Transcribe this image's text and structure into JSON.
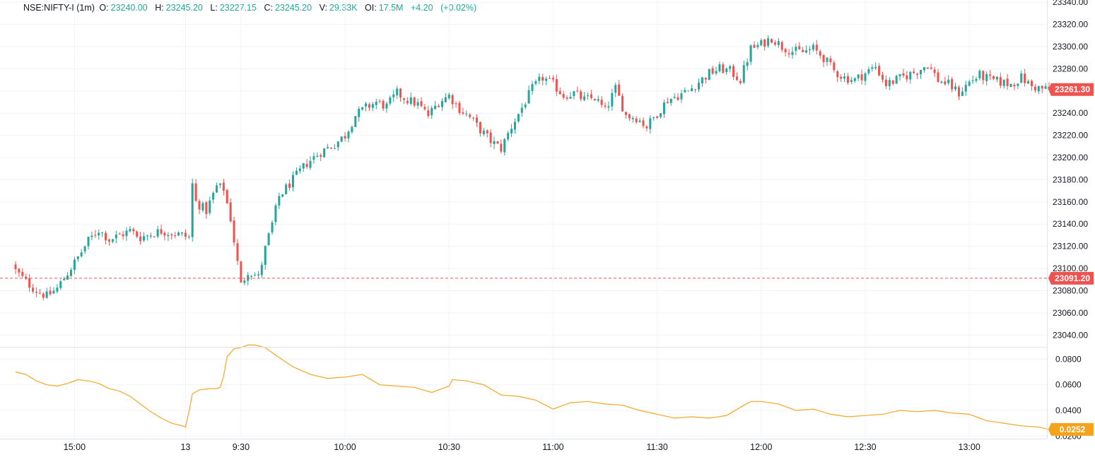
{
  "legend": {
    "symbol": "NSE:NIFTY-I (1m)",
    "o_label": "O:",
    "o_value": "23240.00",
    "h_label": "H:",
    "h_value": "23245.20",
    "l_label": "L:",
    "l_value": "23227.15",
    "c_label": "C:",
    "c_value": "23245.20",
    "v_label": "V:",
    "v_value": "29.33K",
    "oi_label": "OI:",
    "oi_value": "17.5M",
    "change": "+4.20",
    "change_pct": "(+0.02%)"
  },
  "colors": {
    "up": "#26a69a",
    "down": "#ef5350",
    "indicator": "#f5a623",
    "grid": "#f0f3fa",
    "axis_text": "#131722",
    "last_price_bg": "#ef5350",
    "indicator_label_bg": "#f7a21b"
  },
  "chart_data": [
    {
      "type": "candlestick",
      "title": "NSE:NIFTY-I (1m)",
      "x_tick_labels": [
        "15:00",
        "13",
        "9:30",
        "10:00",
        "10:30",
        "11:00",
        "11:30",
        "12:00",
        "12:30",
        "13:00"
      ],
      "y_tick_labels": [
        "23340.00",
        "23320.00",
        "23300.00",
        "23280.00",
        "23260.00",
        "23240.00",
        "23220.00",
        "23200.00",
        "23180.00",
        "23160.00",
        "23140.00",
        "23120.00",
        "23100.00",
        "23080.00",
        "23060.00",
        "23040.00"
      ],
      "ylim": [
        23030,
        23342
      ],
      "last_price_label": "23261.30",
      "last_price": 23261.3,
      "prev_close_label": "23091.20",
      "prev_close": 23091.2,
      "path_prices": [
        [
          0,
          23098
        ],
        [
          3,
          23088
        ],
        [
          6,
          23080
        ],
        [
          9,
          23075
        ],
        [
          12,
          23082
        ],
        [
          15,
          23096
        ],
        [
          18,
          23110
        ],
        [
          21,
          23125
        ],
        [
          24,
          23135
        ],
        [
          27,
          23126
        ],
        [
          30,
          23130
        ],
        [
          33,
          23134
        ],
        [
          36,
          23128
        ],
        [
          39,
          23131
        ],
        [
          42,
          23134
        ],
        [
          45,
          23132
        ],
        [
          48,
          23130
        ],
        [
          50,
          23128
        ],
        [
          51,
          23176
        ],
        [
          52,
          23160
        ],
        [
          55,
          23152
        ],
        [
          58,
          23174
        ],
        [
          60,
          23172
        ],
        [
          62,
          23145
        ],
        [
          64,
          23105
        ],
        [
          65,
          23085
        ],
        [
          67,
          23098
        ],
        [
          70,
          23092
        ],
        [
          72,
          23118
        ],
        [
          74,
          23140
        ],
        [
          76,
          23165
        ],
        [
          80,
          23180
        ],
        [
          84,
          23195
        ],
        [
          88,
          23205
        ],
        [
          92,
          23212
        ],
        [
          95,
          23220
        ],
        [
          98,
          23238
        ],
        [
          101,
          23245
        ],
        [
          104,
          23250
        ],
        [
          107,
          23246
        ],
        [
          110,
          23258
        ],
        [
          113,
          23252
        ],
        [
          116,
          23248
        ],
        [
          119,
          23238
        ],
        [
          122,
          23250
        ],
        [
          125,
          23256
        ],
        [
          128,
          23244
        ],
        [
          131,
          23236
        ],
        [
          134,
          23225
        ],
        [
          137,
          23215
        ],
        [
          140,
          23208
        ],
        [
          143,
          23228
        ],
        [
          146,
          23245
        ],
        [
          149,
          23262
        ],
        [
          152,
          23272
        ],
        [
          155,
          23266
        ],
        [
          158,
          23256
        ],
        [
          161,
          23258
        ],
        [
          164,
          23252
        ],
        [
          167,
          23254
        ],
        [
          170,
          23242
        ],
        [
          173,
          23262
        ],
        [
          176,
          23238
        ],
        [
          179,
          23236
        ],
        [
          182,
          23228
        ],
        [
          185,
          23240
        ],
        [
          188,
          23252
        ],
        [
          191,
          23256
        ],
        [
          194,
          23260
        ],
        [
          197,
          23268
        ],
        [
          200,
          23276
        ],
        [
          203,
          23280
        ],
        [
          206,
          23278
        ],
        [
          209,
          23270
        ],
        [
          212,
          23298
        ],
        [
          215,
          23302
        ],
        [
          218,
          23308
        ],
        [
          221,
          23300
        ],
        [
          224,
          23296
        ],
        [
          227,
          23295
        ],
        [
          230,
          23298
        ],
        [
          233,
          23290
        ],
        [
          236,
          23278
        ],
        [
          239,
          23272
        ],
        [
          242,
          23270
        ],
        [
          245,
          23276
        ],
        [
          248,
          23282
        ],
        [
          251,
          23266
        ],
        [
          254,
          23270
        ],
        [
          257,
          23274
        ],
        [
          260,
          23278
        ],
        [
          263,
          23284
        ],
        [
          266,
          23270
        ],
        [
          269,
          23266
        ],
        [
          272,
          23258
        ],
        [
          275,
          23268
        ],
        [
          278,
          23274
        ],
        [
          281,
          23270
        ],
        [
          284,
          23268
        ],
        [
          287,
          23266
        ],
        [
          290,
          23272
        ],
        [
          293,
          23264
        ],
        [
          296,
          23262
        ],
        [
          298,
          23261.3
        ]
      ],
      "n_candles": 299,
      "x_ticks_at_candle": {
        "15:00": 17,
        "13": 49,
        "9:30": 65,
        "10:00": 95,
        "10:30": 125,
        "11:00": 155,
        "11:30": 185,
        "12:00": 215,
        "12:30": 245,
        "13:00": 275
      }
    },
    {
      "type": "line",
      "title": "indicator",
      "y_tick_labels": [
        "0.0800",
        "0.0600",
        "0.0400",
        "0.0200"
      ],
      "ylim": [
        0.0185,
        0.089
      ],
      "last_value_label": "0.0252",
      "last_value": 0.0252,
      "x": [
        0,
        3,
        6,
        9,
        12,
        15,
        18,
        21,
        24,
        27,
        30,
        33,
        36,
        39,
        42,
        45,
        48,
        49,
        50,
        51,
        53,
        56,
        58,
        59,
        60,
        61,
        63,
        65,
        67,
        69,
        72,
        75,
        80,
        85,
        90,
        95,
        100,
        105,
        110,
        115,
        120,
        125,
        126,
        130,
        135,
        140,
        145,
        150,
        155,
        160,
        165,
        170,
        175,
        180,
        185,
        190,
        195,
        200,
        205,
        210,
        212,
        215,
        220,
        225,
        230,
        235,
        240,
        245,
        250,
        255,
        260,
        265,
        270,
        275,
        280,
        285,
        290,
        295,
        298
      ],
      "values": [
        0.07,
        0.068,
        0.063,
        0.06,
        0.059,
        0.061,
        0.064,
        0.063,
        0.061,
        0.057,
        0.055,
        0.051,
        0.045,
        0.039,
        0.034,
        0.03,
        0.028,
        0.027,
        0.039,
        0.053,
        0.056,
        0.057,
        0.057,
        0.058,
        0.067,
        0.082,
        0.088,
        0.089,
        0.091,
        0.091,
        0.089,
        0.083,
        0.074,
        0.068,
        0.065,
        0.066,
        0.068,
        0.06,
        0.059,
        0.058,
        0.054,
        0.059,
        0.064,
        0.063,
        0.06,
        0.052,
        0.051,
        0.048,
        0.041,
        0.046,
        0.047,
        0.045,
        0.044,
        0.04,
        0.037,
        0.034,
        0.035,
        0.034,
        0.036,
        0.044,
        0.047,
        0.047,
        0.045,
        0.04,
        0.041,
        0.037,
        0.035,
        0.036,
        0.037,
        0.04,
        0.039,
        0.04,
        0.038,
        0.037,
        0.032,
        0.03,
        0.028,
        0.027,
        0.0252
      ]
    }
  ]
}
